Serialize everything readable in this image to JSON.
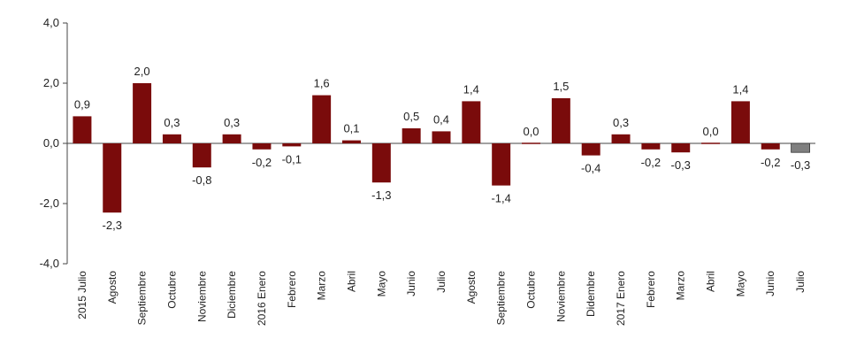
{
  "chart_data": {
    "type": "bar",
    "categories": [
      "2015 Julio",
      "Agosto",
      "Septiembre",
      "Octubre",
      "Noviembre",
      "Diciembre",
      "2016 Enero",
      "Febrero",
      "Marzo",
      "Abril",
      "Mayo",
      "Junio",
      "Julio",
      "Agosto",
      "Septiembre",
      "Octubre",
      "Noviembre",
      "Didembre",
      "2017 Enero",
      "Febrero",
      "Marzo",
      "Abril",
      "Mayo",
      "Junio",
      "Julio"
    ],
    "values": [
      0.9,
      -2.3,
      2.0,
      0.3,
      -0.8,
      0.3,
      -0.2,
      -0.1,
      1.6,
      0.1,
      -1.3,
      0.5,
      0.4,
      1.4,
      -1.4,
      0.0,
      1.5,
      -0.4,
      0.3,
      -0.2,
      -0.3,
      0.0,
      1.4,
      -0.2,
      -0.3
    ],
    "data_labels": [
      "0,9",
      "-2,3",
      "2,0",
      "0,3",
      "-0,8",
      "0,3",
      "-0,2",
      "-0,1",
      "1,6",
      "0,1",
      "-1,3",
      "0,5",
      "0,4",
      "1,4",
      "-1,4",
      "0,0",
      "1,5",
      "-0,4",
      "0,3",
      "-0,2",
      "-0,3",
      "0,0",
      "1,4",
      "-0,2",
      "-0,3"
    ],
    "yticks": [
      "4,0",
      "2,0",
      "0,0",
      "-2,0",
      "-4,0"
    ],
    "ylim": [
      -4,
      4
    ],
    "grid": false,
    "legend": "none",
    "colors": {
      "bar": "#7a0b0b",
      "highlight": "#7f7f7f",
      "axis": "#444444"
    },
    "highlight_index": 24
  }
}
